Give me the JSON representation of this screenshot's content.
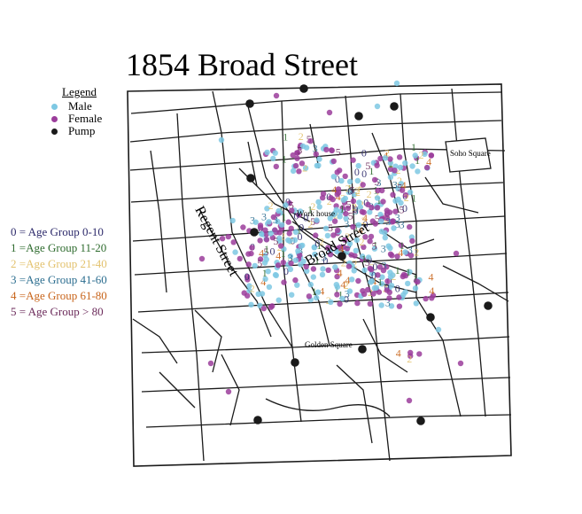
{
  "title": "1854 Broad Street",
  "legend": {
    "title": "Legend",
    "items": [
      {
        "label": "Male",
        "color": "#7ec8e3"
      },
      {
        "label": "Female",
        "color": "#9b3d9b"
      },
      {
        "label": "Pump",
        "color": "#1a1a1a"
      }
    ]
  },
  "age_legend": [
    {
      "label": "0 = Age Group 0-10",
      "color": "#2d2a6b"
    },
    {
      "label": "1 =Age Group 11-20",
      "color": "#2e6b2e"
    },
    {
      "label": "2 =Age Group 21-40",
      "color": "#e3c26e"
    },
    {
      "label": "3 =Age Group 41-60",
      "color": "#2b6d8f"
    },
    {
      "label": "4 =Age Group 61-80",
      "color": "#c8641a"
    },
    {
      "label": "5 = Age Group > 80",
      "color": "#6b2a5a"
    }
  ],
  "map_labels": {
    "soho_square": "Soho Square",
    "work_house": "Work house",
    "regent_street": "Regent Street",
    "broad_street": "Broad Street",
    "golden_square": "Golden Square"
  },
  "colors": {
    "male": "#7ec8e3",
    "female": "#9b3d9b",
    "pump": "#1a1a1a",
    "street": "#1a1a1a"
  }
}
